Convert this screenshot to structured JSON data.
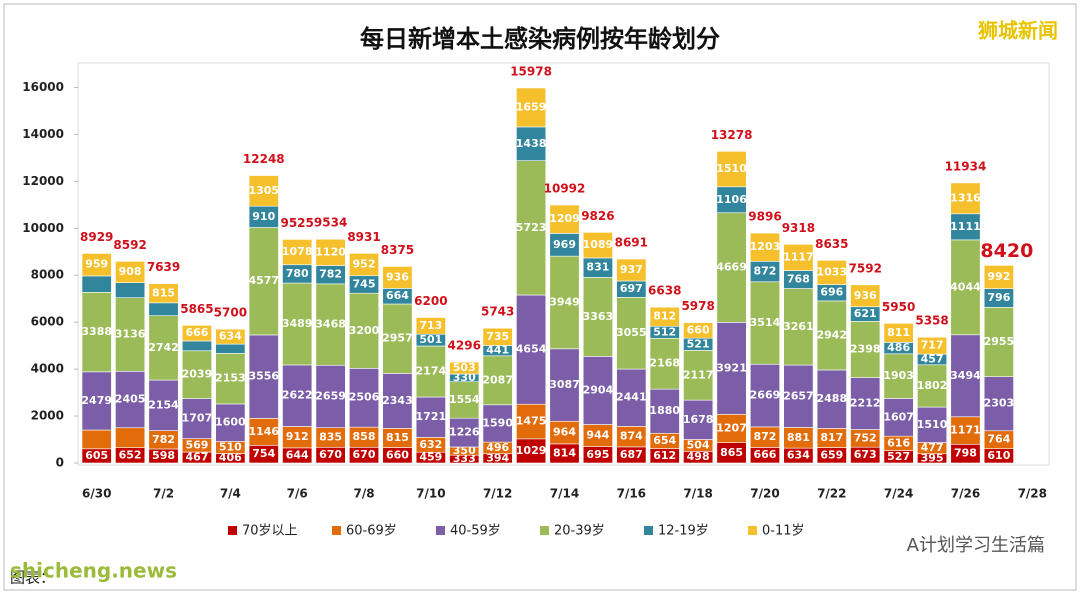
{
  "chart_data": {
    "type": "stacked_bar",
    "title": "每日新增本土感染病例按年龄划分",
    "watermark": "狮城新闻",
    "source": "图表：",
    "footer_left": "shicheng.news",
    "footer_right": "A计划学习生活篇",
    "categories": [
      "6/30",
      null,
      "7/2",
      null,
      "7/4",
      null,
      "7/6",
      null,
      "7/8",
      null,
      "7/10",
      null,
      "7/12",
      null,
      "7/14",
      null,
      "7/16",
      null,
      "7/18",
      null,
      "7/20",
      null,
      "7/22",
      null,
      "7/24",
      null,
      "7/26",
      null,
      "7/28"
    ],
    "totals": [
      8929,
      8592,
      7639,
      5865,
      5700,
      12248,
      9525,
      9534,
      8931,
      8375,
      6200,
      4296,
      5743,
      15978,
      10992,
      9826,
      8691,
      6638,
      5978,
      13278,
      9896,
      9318,
      8635,
      7592,
      5950,
      5358,
      11934,
      8420,
      null
    ],
    "series": [
      {
        "name": "70岁以上",
        "color": "#c00000",
        "values": [
          605,
          652,
          598,
          467,
          406,
          754,
          644,
          670,
          670,
          660,
          459,
          333,
          394,
          1029,
          814,
          695,
          687,
          612,
          498,
          865,
          666,
          634,
          659,
          673,
          527,
          395,
          798,
          610,
          null
        ]
      },
      {
        "name": "60-69岁",
        "color": "#e26b0a",
        "values": [
          800,
          850,
          782,
          569,
          510,
          1146,
          912,
          835,
          858,
          815,
          632,
          350,
          496,
          1475,
          964,
          944,
          874,
          654,
          504,
          1207,
          872,
          881,
          817,
          752,
          616,
          477,
          1171,
          764,
          null
        ],
        "value_labels": [
          null,
          null,
          "782",
          "569",
          "510",
          "1146",
          "912",
          "835",
          "858",
          "815",
          "632",
          "350",
          "496",
          "1475",
          "964",
          "944",
          "874",
          "654",
          "504",
          "1207",
          "872",
          "881",
          "817",
          "752",
          "616",
          "477",
          "1171",
          "764",
          null
        ]
      },
      {
        "name": "40-59岁",
        "color": "#7b5ea7",
        "values": [
          2479,
          2405,
          2154,
          1707,
          1600,
          3556,
          2622,
          2659,
          2506,
          2343,
          1721,
          1226,
          1590,
          4654,
          3087,
          2904,
          2441,
          1880,
          1678,
          3921,
          2669,
          2657,
          2488,
          2212,
          1607,
          1510,
          3494,
          2303,
          null
        ]
      },
      {
        "name": "20-39岁",
        "color": "#9bbb59",
        "values": [
          3388,
          3136,
          2742,
          2039,
          2153,
          4577,
          3489,
          3468,
          3200,
          2957,
          2174,
          1554,
          2087,
          5723,
          3949,
          3363,
          3055,
          2168,
          2117,
          4669,
          3514,
          3261,
          2942,
          2398,
          1903,
          1802,
          4044,
          2955,
          null
        ]
      },
      {
        "name": "12-19岁",
        "color": "#31859c",
        "values": [
          698,
          641,
          548,
          417,
          397,
          910,
          780,
          782,
          745,
          664,
          501,
          330,
          441,
          1438,
          969,
          831,
          697,
          512,
          521,
          1106,
          872,
          768,
          696,
          621,
          486,
          457,
          1111,
          796,
          null
        ],
        "value_labels": [
          null,
          null,
          null,
          null,
          null,
          "910",
          "780",
          "782",
          "745",
          "664",
          "501",
          "330",
          "441",
          "1438",
          "969",
          "831",
          "697",
          "512",
          "521",
          "1106",
          "872",
          "768",
          "696",
          "621",
          "486",
          "457",
          "1111",
          "796",
          null
        ]
      },
      {
        "name": "0-11岁",
        "color": "#f5c02c",
        "values": [
          959,
          908,
          815,
          666,
          634,
          1305,
          1078,
          1120,
          952,
          936,
          713,
          503,
          735,
          1659,
          1209,
          1089,
          937,
          812,
          660,
          1510,
          1203,
          1117,
          1033,
          936,
          811,
          717,
          1316,
          992,
          null
        ]
      }
    ],
    "ylim": [
      0,
      17000
    ],
    "yticks": [
      0,
      2000,
      4000,
      6000,
      8000,
      10000,
      12000,
      14000,
      16000
    ],
    "grid": false,
    "legend": "bottom"
  }
}
